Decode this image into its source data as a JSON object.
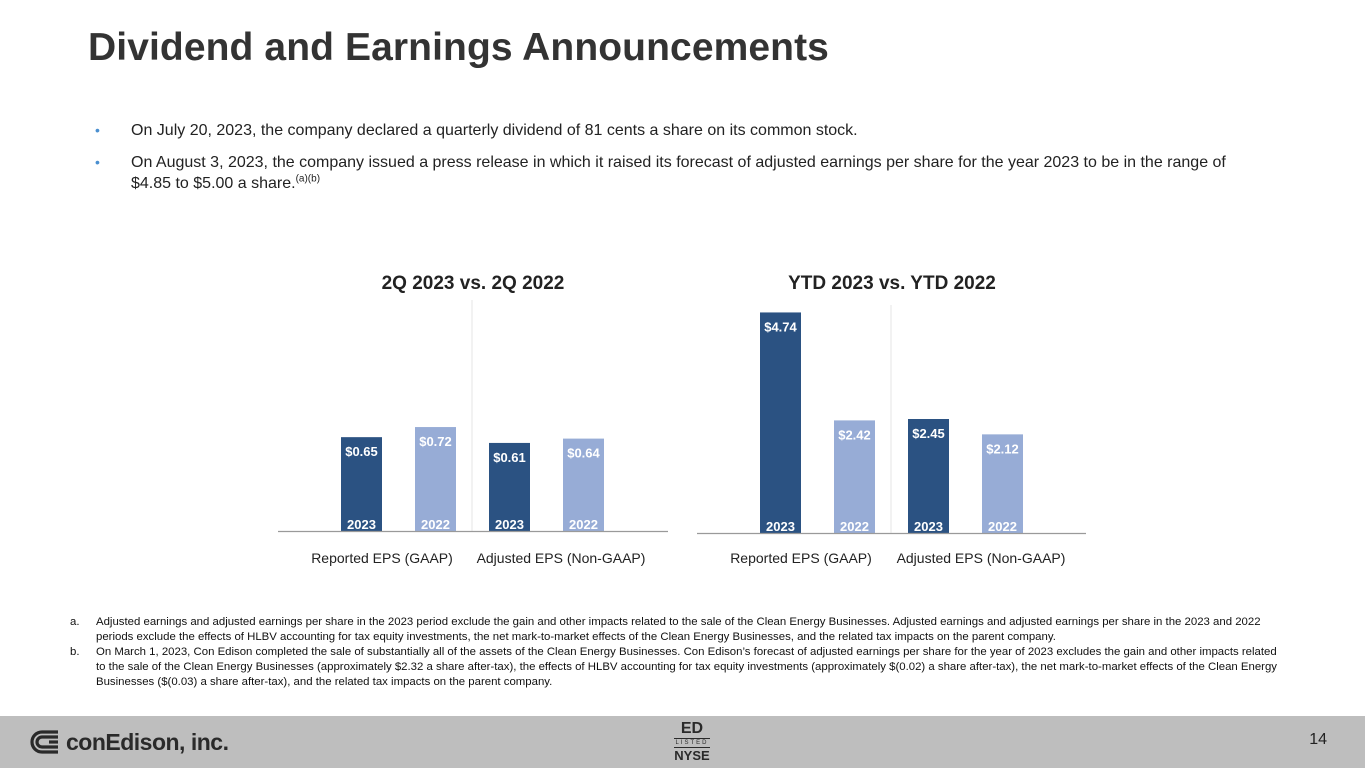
{
  "header": {
    "title": "Dividend and Earnings Announcements"
  },
  "bullets": [
    {
      "text": "On July 20, 2023, the company declared a quarterly dividend of 81 cents a share on its common stock."
    },
    {
      "text": "On August 3, 2023, the company issued a press release in which it raised its forecast of adjusted earnings per share for the year 2023 to be in the range of $4.85 to $5.00 a share.",
      "sup": "(a)(b)"
    }
  ],
  "colors": {
    "dark_bar": "#2b5282",
    "light_bar": "#97acd6",
    "bullet": "#4a8fd0",
    "footer": "#bebebe"
  },
  "chart_data": [
    {
      "type": "bar",
      "title": "2Q 2023 vs. 2Q 2022",
      "categories": [
        "Reported EPS (GAAP)",
        "Adjusted EPS (Non-GAAP)"
      ],
      "series": [
        {
          "name": "2023",
          "values": [
            0.65,
            0.61
          ],
          "labels": [
            "$0.65",
            "$0.61"
          ]
        },
        {
          "name": "2022",
          "values": [
            0.72,
            0.64
          ],
          "labels": [
            "$0.72",
            "$0.64"
          ]
        }
      ],
      "ylim": [
        0,
        1.6
      ],
      "grid": false
    },
    {
      "type": "bar",
      "title": "YTD 2023 vs. YTD 2022",
      "categories": [
        "Reported EPS (GAAP)",
        "Adjusted EPS (Non-GAAP)"
      ],
      "series": [
        {
          "name": "2023",
          "values": [
            4.74,
            2.45
          ],
          "labels": [
            "$4.74",
            "$2.45"
          ]
        },
        {
          "name": "2022",
          "values": [
            2.42,
            2.12
          ],
          "labels": [
            "$2.42",
            "$2.12"
          ]
        }
      ],
      "ylim": [
        0,
        4.9
      ],
      "grid": false
    }
  ],
  "notes": [
    {
      "label": "a.",
      "text": "Adjusted earnings and adjusted earnings per share in the 2023 period exclude the gain and other impacts related to the sale of the Clean Energy Businesses. Adjusted earnings and adjusted earnings per share in the 2023 and 2022 periods exclude the effects of HLBV accounting for tax equity investments, the net mark-to-market effects of the Clean Energy Businesses, and the related tax impacts on the parent company."
    },
    {
      "label": "b.",
      "text": "On March 1, 2023, Con Edison completed the sale of substantially all of the assets of the Clean Energy Businesses. Con Edison’s forecast of adjusted earnings per share for the year of 2023 excludes the gain and other impacts related to the sale of the Clean Energy Businesses (approximately $2.32 a share after-tax), the effects of HLBV accounting for tax equity investments (approximately $(0.02) a share after-tax), the net mark-to-market effects of the Clean Energy Businesses ($(0.03) a share after-tax), and the related tax impacts on the parent company."
    }
  ],
  "footer": {
    "logo_text": "conEdison, inc.",
    "ticker": "ED",
    "listed": "LISTED",
    "exchange": "NYSE",
    "page_number": "14"
  }
}
